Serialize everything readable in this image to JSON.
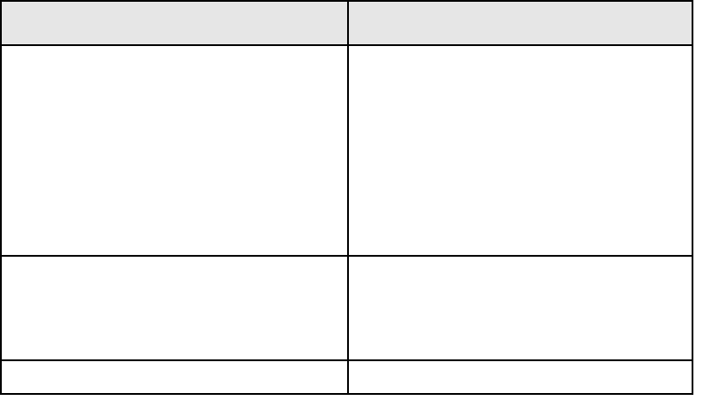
{
  "colors": {
    "header_bg": "#e6e6e6",
    "border": "#000000"
  }
}
